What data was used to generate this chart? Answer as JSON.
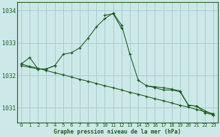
{
  "title": "Graphe pression niveau de la mer (hPa)",
  "background_color": "#cce8e8",
  "grid_color": "#aacccc",
  "line_color": "#1a5c1a",
  "xlim": [
    -0.5,
    23.5
  ],
  "ylim": [
    1030.55,
    1034.25
  ],
  "yticks": [
    1031,
    1032,
    1033,
    1034
  ],
  "xticks": [
    0,
    1,
    2,
    3,
    4,
    5,
    6,
    7,
    8,
    9,
    10,
    11,
    12,
    13,
    14,
    15,
    16,
    17,
    18,
    19,
    20,
    21,
    22,
    23
  ],
  "series1_x": [
    0,
    1,
    2,
    3,
    4,
    5,
    6,
    7,
    8,
    9,
    10,
    11,
    12,
    13,
    14,
    15,
    16,
    17,
    18,
    19,
    20,
    21,
    22,
    23
  ],
  "series1_y": [
    1032.35,
    1032.55,
    1032.2,
    1032.2,
    1032.3,
    1032.65,
    1032.7,
    1032.85,
    1033.15,
    1033.5,
    1033.75,
    1033.92,
    1033.55,
    1032.65,
    1031.85,
    1031.68,
    1031.65,
    1031.62,
    1031.58,
    1031.52,
    1031.08,
    1031.05,
    1030.85,
    1030.78
  ],
  "series2_x": [
    0,
    1,
    2,
    3,
    4,
    5,
    6,
    7,
    8,
    9,
    10,
    11,
    12,
    13,
    14,
    15,
    16,
    17,
    18,
    19,
    20,
    21,
    22,
    23
  ],
  "series2_y": [
    1032.35,
    1032.28,
    1032.22,
    1032.15,
    1032.08,
    1032.02,
    1031.95,
    1031.88,
    1031.82,
    1031.75,
    1031.68,
    1031.62,
    1031.55,
    1031.48,
    1031.42,
    1031.35,
    1031.28,
    1031.22,
    1031.15,
    1031.08,
    1031.02,
    1030.95,
    1030.88,
    1030.82
  ],
  "series3_x": [
    0,
    2,
    3,
    4,
    10,
    11,
    12,
    15,
    16,
    17,
    18,
    19,
    20,
    21,
    23
  ],
  "series3_y": [
    1032.3,
    1032.2,
    1032.2,
    1032.3,
    1033.85,
    1033.9,
    1033.45,
    1031.68,
    1031.62,
    1031.55,
    1031.55,
    1031.5,
    1031.08,
    1031.05,
    1030.78
  ],
  "series3_breaks": [
    [
      4,
      10
    ],
    [
      12,
      15
    ]
  ]
}
